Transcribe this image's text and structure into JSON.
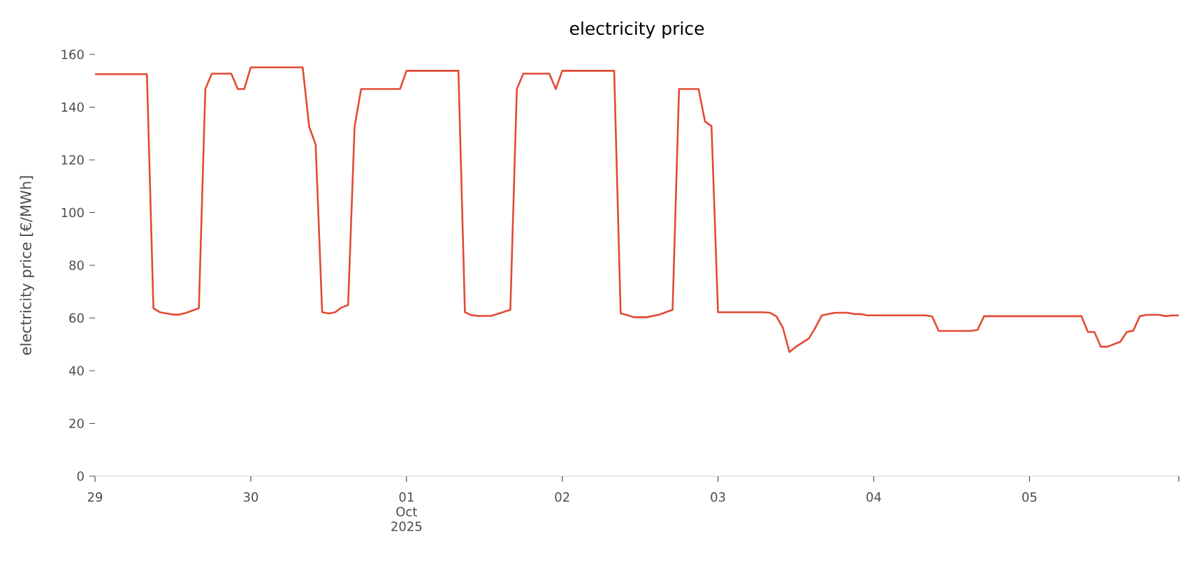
{
  "chart_data": {
    "type": "line",
    "title": "electricity price",
    "ylabel": "electricity price [€/MWh]",
    "x": [
      "2025-09-29T00:00",
      "2025-09-29T08:00",
      "2025-09-29T09:00",
      "2025-09-29T10:00",
      "2025-09-29T12:00",
      "2025-09-29T13:00",
      "2025-09-29T14:00",
      "2025-09-29T16:00",
      "2025-09-29T17:00",
      "2025-09-29T18:00",
      "2025-09-29T21:00",
      "2025-09-29T22:00",
      "2025-09-29T23:00",
      "2025-09-30T00:00",
      "2025-09-30T08:00",
      "2025-09-30T09:00",
      "2025-09-30T10:00",
      "2025-09-30T11:00",
      "2025-09-30T12:00",
      "2025-09-30T13:00",
      "2025-09-30T14:00",
      "2025-09-30T15:00",
      "2025-09-30T16:00",
      "2025-09-30T17:00",
      "2025-09-30T23:00",
      "2025-10-01T00:00",
      "2025-10-01T08:00",
      "2025-10-01T09:00",
      "2025-10-01T10:00",
      "2025-10-01T11:00",
      "2025-10-01T13:00",
      "2025-10-01T14:00",
      "2025-10-01T16:00",
      "2025-10-01T17:00",
      "2025-10-01T18:00",
      "2025-10-01T22:00",
      "2025-10-01T23:00",
      "2025-10-02T00:00",
      "2025-10-02T08:00",
      "2025-10-02T09:00",
      "2025-10-02T10:00",
      "2025-10-02T11:00",
      "2025-10-02T13:00",
      "2025-10-02T15:00",
      "2025-10-02T17:00",
      "2025-10-02T18:00",
      "2025-10-02T21:00",
      "2025-10-02T22:00",
      "2025-10-02T23:00",
      "2025-10-03T00:00",
      "2025-10-03T07:00",
      "2025-10-03T08:00",
      "2025-10-03T09:00",
      "2025-10-03T10:00",
      "2025-10-03T11:00",
      "2025-10-03T12:00",
      "2025-10-03T14:00",
      "2025-10-03T15:00",
      "2025-10-03T16:00",
      "2025-10-03T18:00",
      "2025-10-03T20:00",
      "2025-10-03T21:00",
      "2025-10-03T22:00",
      "2025-10-03T23:00",
      "2025-10-04T08:00",
      "2025-10-04T09:00",
      "2025-10-04T10:00",
      "2025-10-04T15:00",
      "2025-10-04T16:00",
      "2025-10-04T17:00",
      "2025-10-05T08:00",
      "2025-10-05T09:00",
      "2025-10-05T10:00",
      "2025-10-05T11:00",
      "2025-10-05T12:00",
      "2025-10-05T14:00",
      "2025-10-05T15:00",
      "2025-10-05T16:00",
      "2025-10-05T17:00",
      "2025-10-05T18:00",
      "2025-10-05T20:00",
      "2025-10-05T21:00",
      "2025-10-05T22:00",
      "2025-10-05T23:00"
    ],
    "series": [
      {
        "color": "#e24a33",
        "values": [
          152.5,
          152.5,
          63.7,
          62.2,
          61.3,
          61.3,
          61.9,
          63.7,
          146.9,
          152.7,
          152.7,
          146.9,
          146.9,
          155.1,
          155.1,
          132.6,
          125.8,
          62.2,
          61.7,
          62.2,
          64.0,
          64.9,
          132.6,
          146.9,
          146.9,
          153.8,
          153.8,
          62.2,
          61.1,
          60.8,
          60.8,
          61.5,
          63.1,
          146.9,
          152.7,
          152.7,
          146.9,
          153.8,
          153.8,
          61.7,
          61.1,
          60.3,
          60.3,
          61.3,
          63.1,
          146.9,
          146.9,
          134.6,
          132.8,
          62.2,
          62.2,
          62.0,
          60.6,
          56.3,
          47.1,
          49.1,
          52.2,
          56.3,
          61.0,
          62.0,
          62.0,
          61.5,
          61.5,
          61.0,
          61.0,
          60.6,
          55.1,
          55.1,
          55.5,
          60.7,
          60.7,
          54.7,
          54.7,
          49.1,
          49.1,
          51.0,
          54.7,
          55.2,
          60.7,
          61.2,
          61.2,
          60.7,
          61.0,
          61.0
        ]
      }
    ],
    "xlim": [
      "2025-09-29T00:00",
      "2025-10-05T23:00"
    ],
    "xticks": [
      {
        "value": "2025-09-29",
        "label": "29"
      },
      {
        "value": "2025-09-30",
        "label": "30"
      },
      {
        "value": "2025-10-01",
        "label": "01\nOct\n2025"
      },
      {
        "value": "2025-10-02",
        "label": "02"
      },
      {
        "value": "2025-10-03",
        "label": "03"
      },
      {
        "value": "2025-10-04",
        "label": "04"
      },
      {
        "value": "2025-10-05",
        "label": "05"
      },
      {
        "value": "2025-10-05T23:00",
        "label": null
      }
    ],
    "ylim": [
      0,
      160
    ],
    "yticks": [
      0,
      20,
      40,
      60,
      80,
      100,
      120,
      140,
      160
    ],
    "grid": false,
    "marker": "none",
    "line_style": "solid"
  }
}
